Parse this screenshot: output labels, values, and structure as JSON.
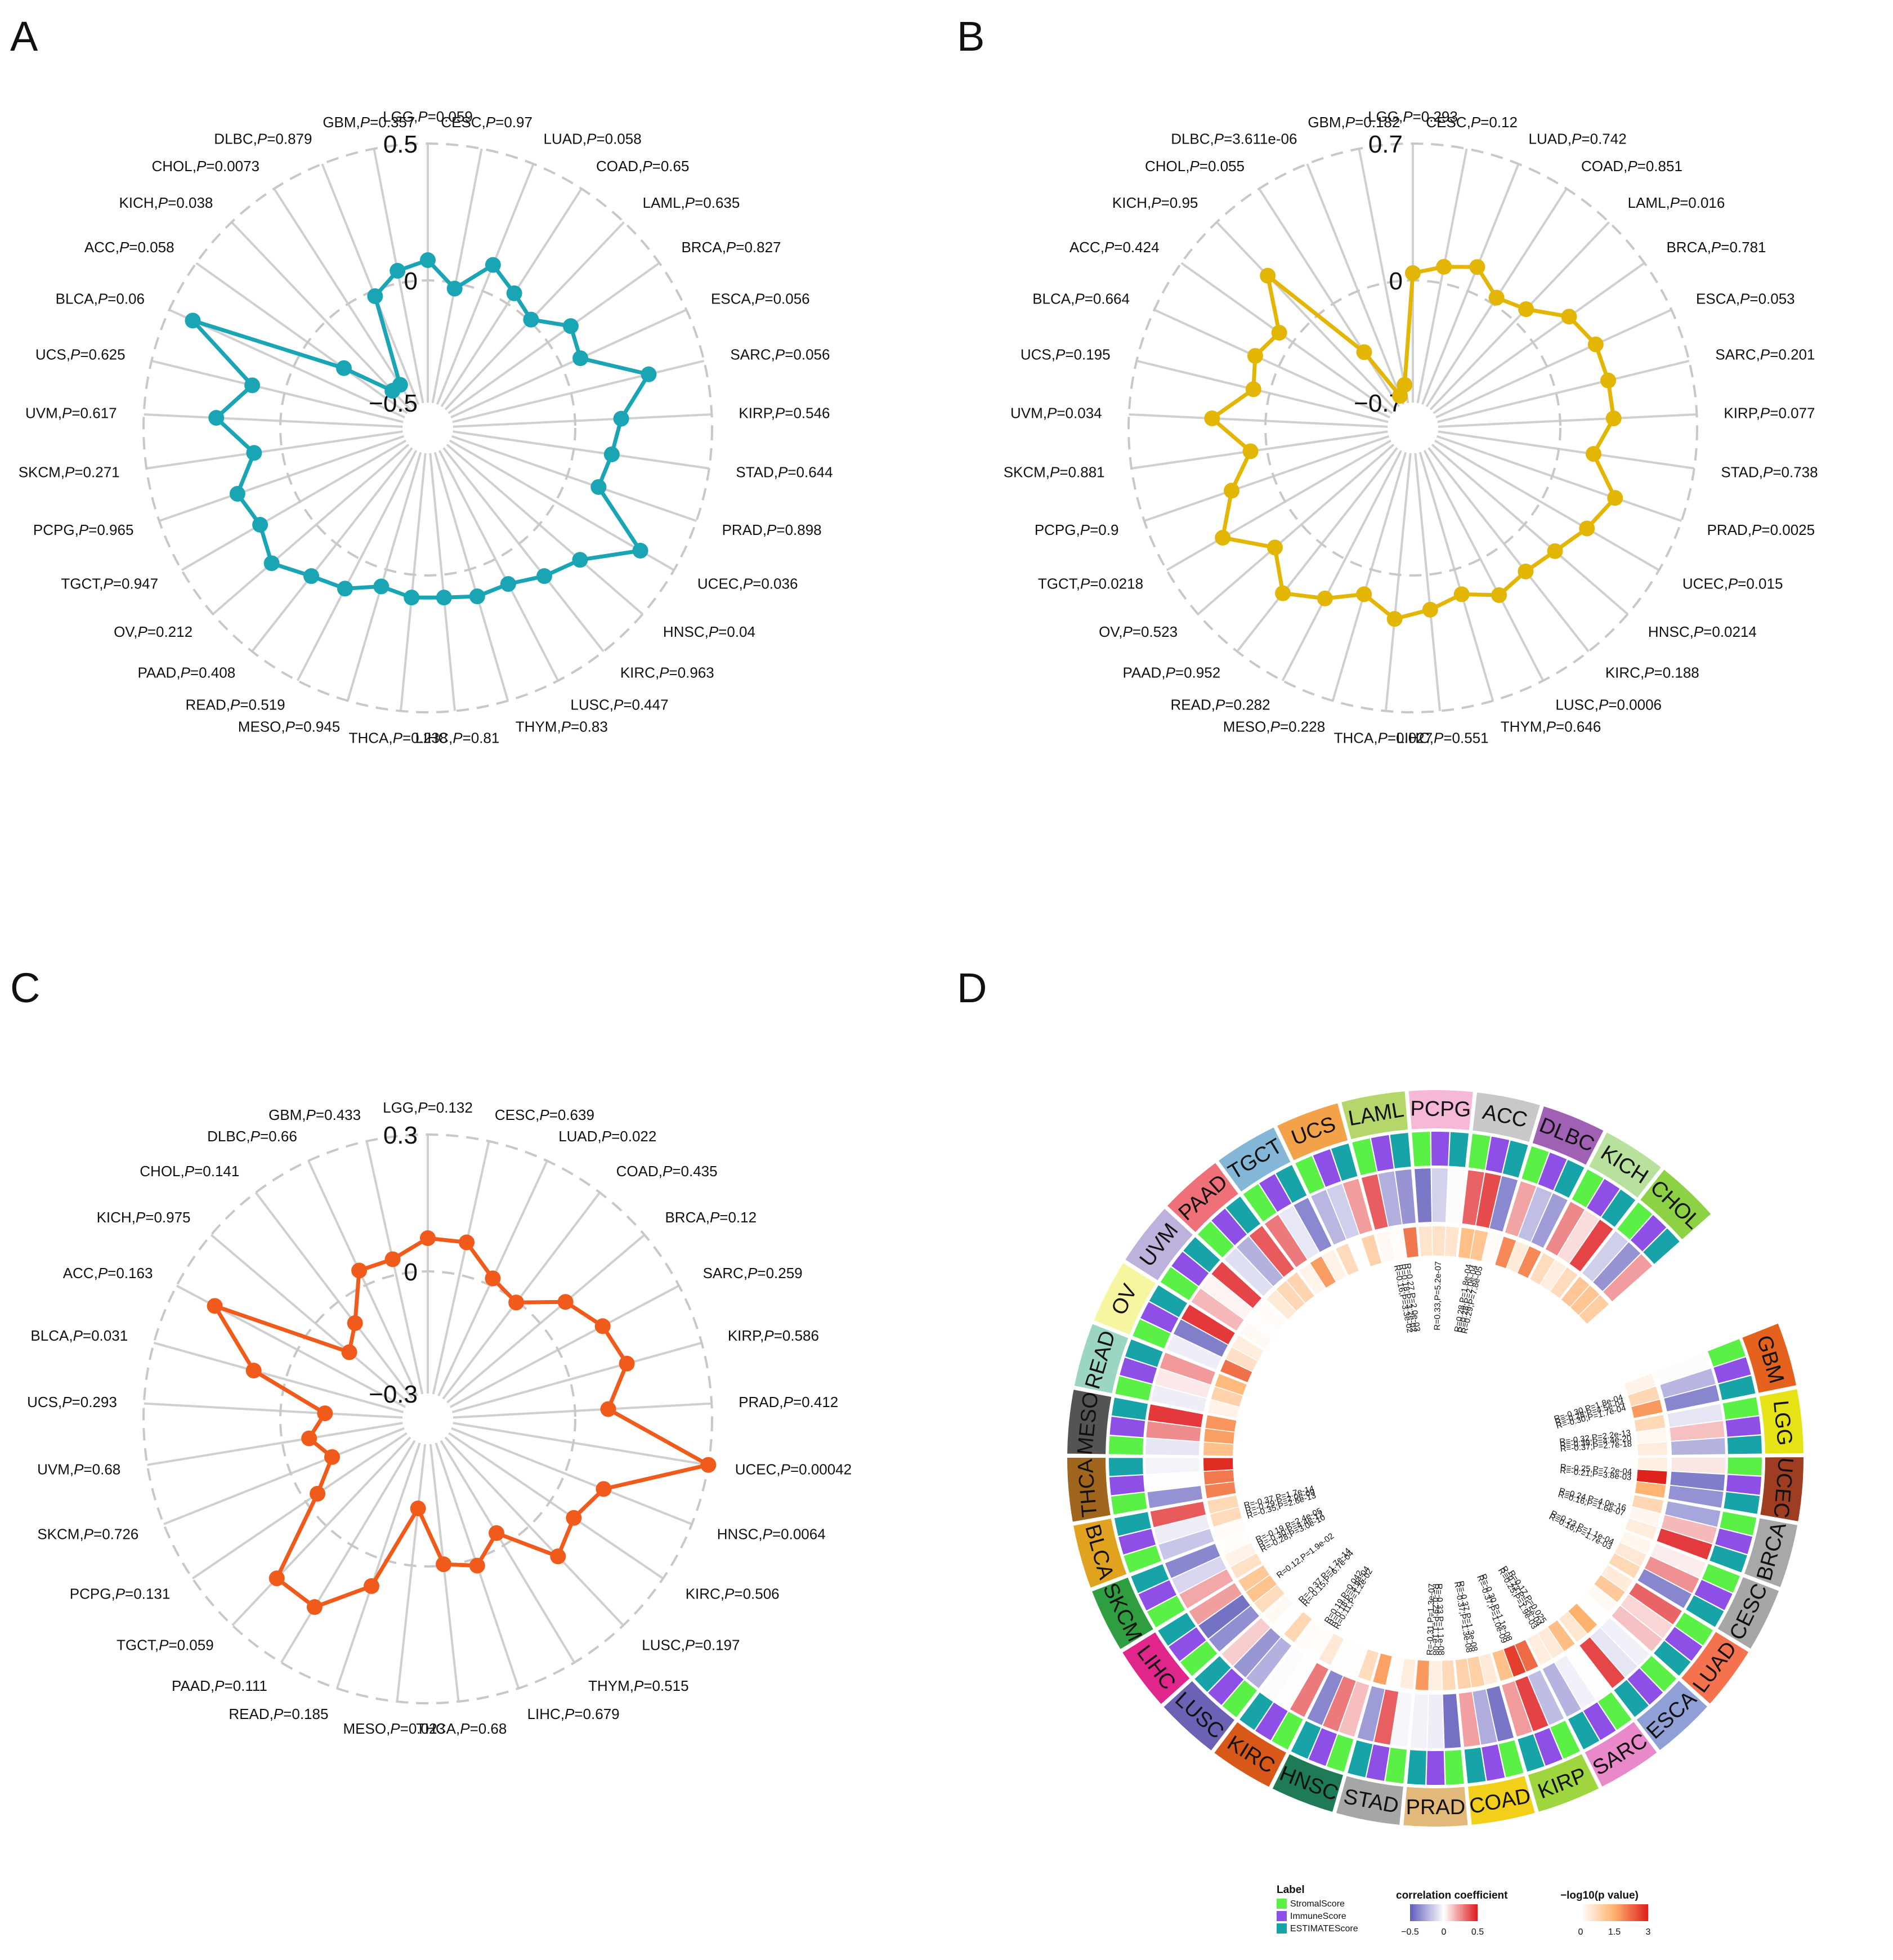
{
  "panels": {
    "a": "A",
    "b": "B",
    "c": "C",
    "d": "D"
  },
  "chart_data": [
    {
      "panel": "A",
      "type": "radar",
      "color": "#1aa5b5",
      "range": [
        -0.5,
        0.5
      ],
      "tick_labels": [
        "0.5",
        "0",
        "−0.5"
      ],
      "categories": [
        "LGG",
        "CESC",
        "LUAD",
        "COAD",
        "LAML",
        "BRCA",
        "ESCA",
        "SARC",
        "KIRP",
        "STAD",
        "PRAD",
        "UCEC",
        "HNSC",
        "KIRC",
        "LUSC",
        "THYM",
        "LIHC",
        "THCA",
        "MESO",
        "READ",
        "PAAD",
        "OV",
        "TGCT",
        "PCPG",
        "SKCM",
        "UVM",
        "UCS",
        "BLCA",
        "ACC",
        "KICH",
        "CHOL",
        "DLBC",
        "GBM"
      ],
      "p_values": [
        "0.059",
        "0.97",
        "0.058",
        "0.65",
        "0.635",
        "0.827",
        "0.056",
        "0.056",
        "0.546",
        "0.644",
        "0.898",
        "0.036",
        "0.04",
        "0.963",
        "0.447",
        "0.83",
        "0.81",
        "0.238",
        "0.945",
        "0.519",
        "0.408",
        "0.212",
        "0.947",
        "0.965",
        "0.271",
        "0.617",
        "0.625",
        "0.06",
        "0.058",
        "0.038",
        "0.0073",
        "0.879",
        "0.357"
      ],
      "values": [
        0.05,
        -0.05,
        0.08,
        0.02,
        -0.02,
        0.08,
        0.05,
        0.28,
        0.15,
        0.12,
        0.1,
        0.35,
        0.18,
        0.13,
        0.08,
        0.08,
        0.06,
        0.06,
        0.04,
        0.1,
        0.13,
        0.2,
        0.15,
        0.18,
        0.08,
        0.22,
        0.1,
        0.4,
        -0.2,
        -0.4,
        -0.4,
        -0.05,
        0.02
      ]
    },
    {
      "panel": "B",
      "type": "radar",
      "color": "#e3b505",
      "range": [
        -0.7,
        0.7
      ],
      "tick_labels": [
        "0.7",
        "0",
        "−0.7"
      ],
      "categories": [
        "LGG",
        "CESC",
        "LUAD",
        "COAD",
        "LAML",
        "BRCA",
        "ESCA",
        "SARC",
        "KIRP",
        "STAD",
        "PRAD",
        "UCEC",
        "HNSC",
        "KIRC",
        "LUSC",
        "THYM",
        "LIHC",
        "THCA",
        "MESO",
        "READ",
        "PAAD",
        "OV",
        "TGCT",
        "PCPG",
        "SKCM",
        "UVM",
        "UCS",
        "BLCA",
        "ACC",
        "KICH",
        "CHOL",
        "DLBC",
        "GBM"
      ],
      "p_values": [
        "0.293",
        "0.12",
        "0.742",
        "0.851",
        "0.016",
        "0.781",
        "0.053",
        "0.201",
        "0.077",
        "0.738",
        "0.0025",
        "0.015",
        "0.0214",
        "0.188",
        "0.0006",
        "0.646",
        "0.551",
        "0.027",
        "0.228",
        "0.282",
        "0.952",
        "0.523",
        "0.0218",
        "0.9",
        "0.881",
        "0.034",
        "0.195",
        "0.664",
        "0.424",
        "0.95",
        "0.055",
        "3.611e-06",
        "0.182"
      ],
      "values": [
        0.0,
        0.05,
        0.1,
        0.0,
        0.05,
        0.2,
        0.25,
        0.25,
        0.25,
        0.15,
        0.32,
        0.25,
        0.18,
        0.15,
        0.18,
        0.1,
        0.15,
        0.2,
        0.1,
        0.2,
        0.3,
        0.15,
        0.35,
        0.2,
        0.05,
        0.25,
        0.05,
        0.1,
        0.05,
        0.3,
        -0.35,
        -0.65,
        -0.6
      ]
    },
    {
      "panel": "C",
      "type": "radar",
      "color": "#f05a1a",
      "range": [
        -0.3,
        0.3
      ],
      "tick_labels": [
        "0.3",
        "0",
        "−0.3"
      ],
      "categories": [
        "LGG",
        "CESC",
        "LUAD",
        "COAD",
        "BRCA",
        "SARC",
        "KIRP",
        "PRAD",
        "UCEC",
        "HNSC",
        "KIRC",
        "LUSC",
        "THYM",
        "LIHC",
        "THCA",
        "MESO",
        "READ",
        "PAAD",
        "TGCT",
        "PCPG",
        "SKCM",
        "UVM",
        "UCS",
        "BLCA",
        "ACC",
        "KICH",
        "CHOL",
        "DLBC",
        "GBM"
      ],
      "p_values": [
        "0.132",
        "0.639",
        "0.022",
        "0.435",
        "0.12",
        "0.259",
        "0.586",
        "0.412",
        "0.00042",
        "0.0064",
        "0.506",
        "0.197",
        "0.515",
        "0.679",
        "0.68",
        "0.023",
        "0.185",
        "0.111",
        "0.059",
        "0.131",
        "0.726",
        "0.68",
        "0.293",
        "0.031",
        "0.163",
        "0.975",
        "0.141",
        "0.66",
        "0.433"
      ],
      "values": [
        0.06,
        0.06,
        0.0,
        -0.02,
        0.06,
        0.1,
        0.12,
        0.06,
        0.3,
        0.08,
        0.05,
        0.08,
        -0.05,
        0.0,
        -0.02,
        -0.15,
        0.05,
        0.15,
        0.15,
        -0.05,
        -0.12,
        -0.08,
        -0.12,
        0.06,
        0.2,
        -0.12,
        -0.08,
        0.02,
        0.02
      ]
    },
    {
      "panel": "D",
      "type": "circular-heatmap",
      "segments": [
        "GBM",
        "LGG",
        "UCEC",
        "BRCA",
        "CESC",
        "LUAD",
        "ESCA",
        "SARC",
        "KIRP",
        "COAD",
        "PRAD",
        "STAD",
        "HNSC",
        "KIRC",
        "LUSC",
        "LIHC",
        "SKCM",
        "BLCA",
        "THCA",
        "MESO",
        "READ",
        "OV",
        "UVM",
        "PAAD",
        "TGCT",
        "UCS",
        "LAML",
        "PCPG",
        "ACC",
        "DLBC",
        "KICH",
        "CHOL"
      ],
      "segment_colors": [
        "#e5611e",
        "#e5e316",
        "#9e3d22",
        "#a8a8a8",
        "#a6a6a6",
        "#f4724e",
        "#8fa0d6",
        "#e989c9",
        "#9fd640",
        "#f1cf1a",
        "#e2b97a",
        "#a6a6a6",
        "#1f7b55",
        "#d8581a",
        "#6b62b5",
        "#e0268a",
        "#2f9e40",
        "#e1a31f",
        "#a0661e",
        "#545454",
        "#9ad6c3",
        "#f7f5a0",
        "#bcb2dc",
        "#ef7079",
        "#84b7d7",
        "#f4a24a",
        "#b5d66a",
        "#f5b8d6",
        "#c8c8c8",
        "#a061b5",
        "#b7e19c",
        "#8cd244"
      ],
      "annotations": [
        {
          "segment": "LAML",
          "lines": [
            "R=0.16,P=3.3e-02",
            "R=0.18,P=3.2e-02",
            "R=0.27,P=2.0e-03"
          ]
        },
        {
          "segment": "PCPG",
          "lines": [
            "R=0.33,P=5.2e-07"
          ]
        },
        {
          "segment": "ACC",
          "lines": [
            "R=0.28,P=1.8e-04",
            "R=0.28,P=2.0e-04",
            "R=0.29,P=7.8e-05"
          ]
        },
        {
          "segment": "GBM",
          "lines": [
            "R=-0.30,P=1.8e-04",
            "R=-0.28,P=4.5e-04",
            "R=-0.30,P=1.7e-04"
          ]
        },
        {
          "segment": "LGG",
          "lines": [
            "R=-0.32,P=2.2e-13",
            "R=-0.39,P=4.4e-20",
            "R=-0.37,P=2.7e-18"
          ]
        },
        {
          "segment": "UCEC",
          "lines": [
            "R=-0.25,P=7.2e-04",
            "R=-0.21,P=3.8e-03"
          ]
        },
        {
          "segment": "BRCA",
          "lines": [
            "R=0.24,P=4.0e-16",
            "R=0.16,P=1.6e-07"
          ]
        },
        {
          "segment": "CESC",
          "lines": [
            "R=0.23,P=1.1e-04",
            "R=0.16,P=1.7e-03"
          ]
        },
        {
          "segment": "SARC",
          "lines": [
            "R=0.17,P=0.025",
            "R=0.23,P=5.5e-04",
            "R=0.25,P=1.9e-03"
          ]
        },
        {
          "segment": "KIRP",
          "lines": [
            "R=-0.30,P=1.1e-08",
            "R=-0.37,P=1.0e-09"
          ]
        },
        {
          "segment": "COAD",
          "lines": [
            "R=-0.37,P=1.3e-08",
            "R=-0.37,P=1.3e-08"
          ]
        },
        {
          "segment": "PRAD",
          "lines": [
            "R=-0.33,P=1.1e-08",
            "R=-0.29,P=1.1e-08",
            "R=-0.31,P=1.3e-07"
          ]
        },
        {
          "segment": "KIRC",
          "lines": [
            "R=0.11,P=1.2e-02",
            "R=0.18,P=4.9e-04",
            "R=0.19,P=0.042"
          ]
        },
        {
          "segment": "LUSC",
          "lines": [
            "R=-0.15,P=6.7e-04",
            "R=-0.37,P=1.7e-14"
          ]
        },
        {
          "segment": "LIHC",
          "lines": [
            "R=0.12,P=1.9e-02"
          ]
        },
        {
          "segment": "SKCM",
          "lines": [
            "R=-0.28,P=3.0e-10",
            "R=-0.30,P=4.4e-12",
            "R=-0.19,P=2.4e-05"
          ]
        },
        {
          "segment": "BLCA",
          "lines": [
            "R=-0.35,P=2.6e-13",
            "R=-0.29,P=2.0e-09",
            "R=-0.37,P=1.7e-14"
          ]
        }
      ],
      "legend": {
        "label": {
          "title": "Label",
          "items": [
            {
              "name": "StromalScore",
              "color": "#5af046"
            },
            {
              "name": "ImmuneScore",
              "color": "#8e4fe6"
            },
            {
              "name": "ESTIMATEScore",
              "color": "#17a3a8"
            }
          ]
        },
        "correlation": {
          "title": "correlation coefficient",
          "ticks": [
            "−0.5",
            "0",
            "0.5"
          ]
        },
        "pvalue": {
          "title": "−log10(p value)",
          "ticks": [
            "0",
            "1.5",
            "3"
          ]
        }
      }
    }
  ]
}
